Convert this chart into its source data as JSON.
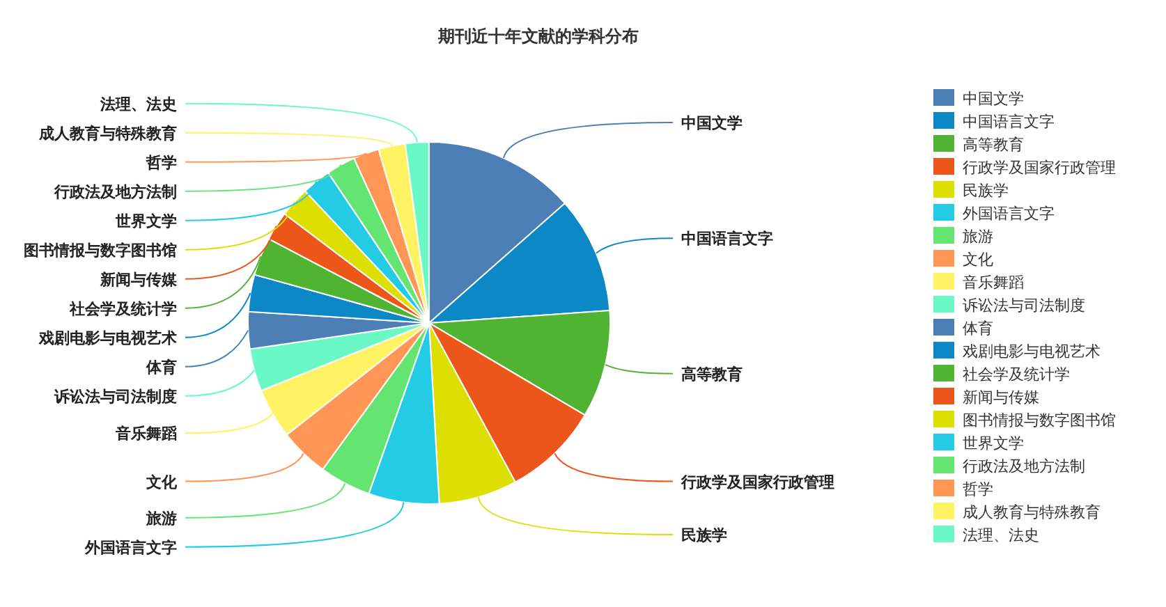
{
  "chart_data": {
    "type": "pie",
    "title": "期刊近十年文献的学科分布",
    "categories": [
      "中国文学",
      "中国语言文字",
      "高等教育",
      "行政学及国家行政管理",
      "民族学",
      "外国语言文字",
      "旅游",
      "文化",
      "音乐舞蹈",
      "诉讼法与司法制度",
      "体育",
      "戏剧电影与电视艺术",
      "社会学及统计学",
      "新闻与传媒",
      "图书情报与数字图书馆",
      "世界文学",
      "行政法及地方法制",
      "哲学",
      "成人教育与特殊教育",
      "法理、法史"
    ],
    "values": [
      13.5,
      10.4,
      9.6,
      8.6,
      7.0,
      6.3,
      4.6,
      4.4,
      4.5,
      3.8,
      3.3,
      3.3,
      3.4,
      2.6,
      2.7,
      2.6,
      2.6,
      2.3,
      2.4,
      2.1
    ],
    "colors": [
      "#4b7fb5",
      "#0d88c6",
      "#50b432",
      "#ed561b",
      "#dddf00",
      "#24cbe5",
      "#64e572",
      "#ff9655",
      "#fff263",
      "#6af9c4",
      "#4b7fb5",
      "#0d88c6",
      "#50b432",
      "#ed561b",
      "#dddf00",
      "#24cbe5",
      "#64e572",
      "#ff9655",
      "#fff263",
      "#6af9c4"
    ],
    "legend": "right"
  }
}
